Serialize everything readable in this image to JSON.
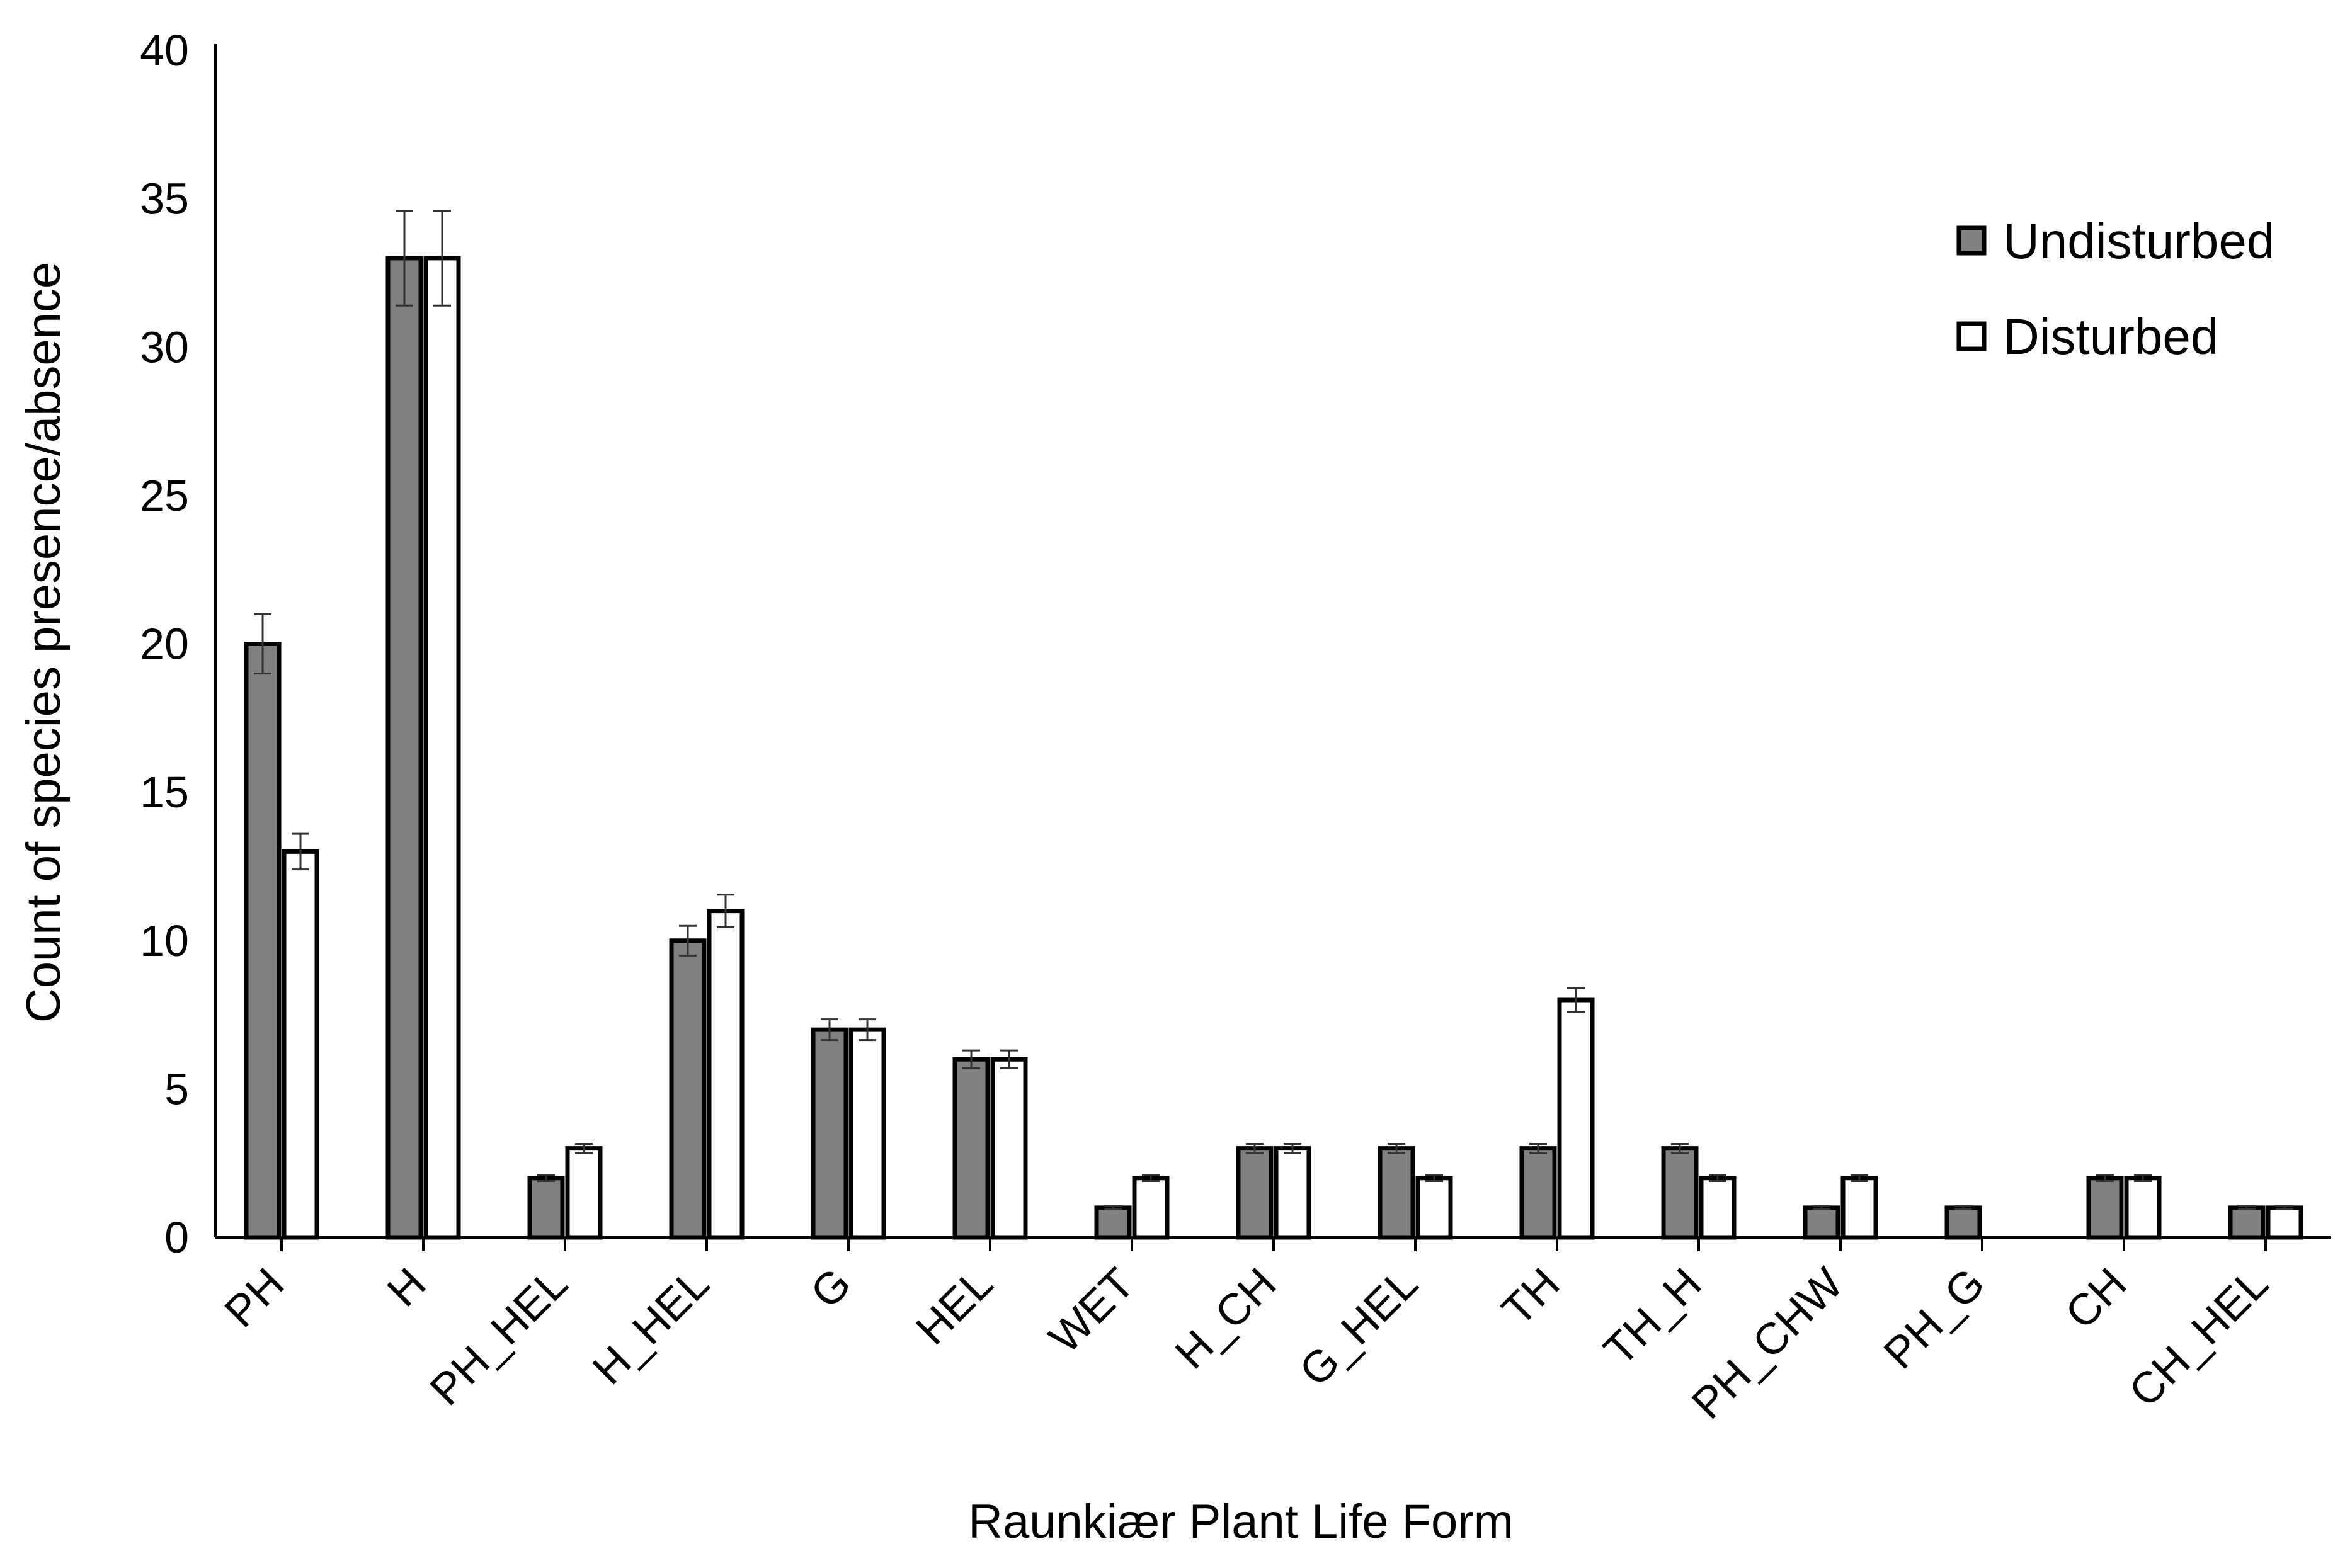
{
  "chart_data": {
    "type": "bar",
    "title": "",
    "xlabel": "Raunkiær Plant Life Form",
    "ylabel": "Count of species presence/absence",
    "ylim": [
      0,
      40
    ],
    "yticks": [
      0,
      5,
      10,
      15,
      20,
      25,
      30,
      35,
      40
    ],
    "grid": false,
    "legend_position": "top-right",
    "error_bars": true,
    "categories": [
      "PH",
      "H",
      "PH_HEL",
      "H_HEL",
      "G",
      "HEL",
      "WET",
      "H_CH",
      "G_HEL",
      "TH",
      "TH_H",
      "PH_CHW",
      "PH_G",
      "CH",
      "CH_HEL"
    ],
    "series": [
      {
        "name": "Undisturbed",
        "color": "#808080",
        "values": [
          20,
          33,
          2,
          10,
          7,
          6,
          1,
          3,
          3,
          3,
          3,
          1,
          1,
          2,
          1
        ],
        "errors": [
          1.0,
          1.6,
          0.1,
          0.5,
          0.35,
          0.3,
          0.05,
          0.15,
          0.15,
          0.15,
          0.15,
          0.05,
          0.05,
          0.1,
          0.05
        ]
      },
      {
        "name": "Disturbed",
        "color": "#ffffff",
        "values": [
          13,
          33,
          3,
          11,
          7,
          6,
          2,
          3,
          2,
          8,
          2,
          2,
          0,
          2,
          1
        ],
        "errors": [
          0.6,
          1.6,
          0.15,
          0.55,
          0.35,
          0.3,
          0.1,
          0.15,
          0.1,
          0.4,
          0.1,
          0.1,
          0,
          0.1,
          0.05
        ]
      }
    ]
  }
}
